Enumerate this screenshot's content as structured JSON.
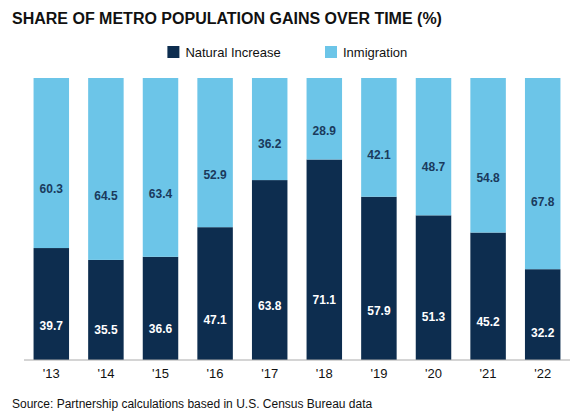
{
  "chart_data": {
    "type": "bar",
    "stacked": true,
    "title": "SHARE OF METRO POPULATION GAINS OVER TIME (%)",
    "categories": [
      "'13",
      "'14",
      "'15",
      "'16",
      "'17",
      "'18",
      "'19",
      "'20",
      "'21",
      "'22"
    ],
    "series": [
      {
        "name": "Natural Increase",
        "color": "#0d2d4f",
        "values": [
          39.7,
          35.5,
          36.6,
          47.1,
          63.8,
          71.1,
          57.9,
          51.3,
          45.2,
          32.2
        ]
      },
      {
        "name": "Inmigration",
        "color": "#6cc5e8",
        "values": [
          60.3,
          64.5,
          63.4,
          52.9,
          36.2,
          28.9,
          42.1,
          48.7,
          54.8,
          67.8
        ]
      }
    ],
    "ylim": [
      0,
      100
    ],
    "tick_labels": "x",
    "grid": false,
    "legend": "top",
    "data_labels": true,
    "annotations": [
      "Source: Partnership calculations based in U.S. Census Bureau data"
    ]
  }
}
